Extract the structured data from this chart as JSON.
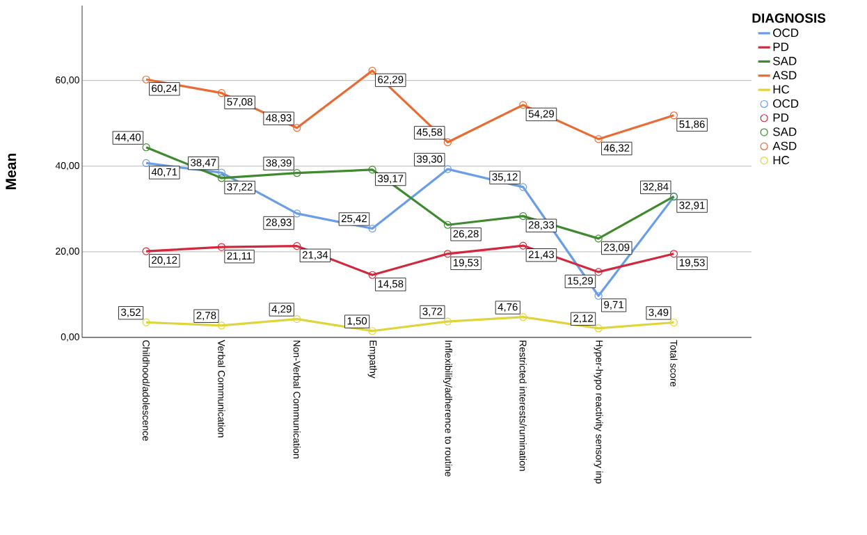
{
  "chart_data": {
    "type": "line",
    "ylabel": "Mean",
    "legend_title": "DIAGNOSIS",
    "categories": [
      "Childhood/adolescence",
      "Verbal Communication",
      "Non-Verbal Communication",
      "Empathy",
      "Inflexibility/adherence to routine",
      "Restricted interests/rumination",
      "Hyper-hypo reactivity sensory inp",
      "Total score"
    ],
    "series": [
      {
        "name": "OCD",
        "color": "#6a9de8",
        "values": [
          40.71,
          38.47,
          28.93,
          25.42,
          39.3,
          35.12,
          9.71,
          32.84
        ],
        "value_labels": [
          "40,71",
          "38,47",
          "28,93",
          "25,42",
          "39,30",
          "35,12",
          "9,71",
          "32,84"
        ]
      },
      {
        "name": "PD",
        "color": "#d0283c",
        "values": [
          20.12,
          21.11,
          21.34,
          14.58,
          19.53,
          21.43,
          15.29,
          19.53
        ],
        "value_labels": [
          "20,12",
          "21,11",
          "21,34",
          "14,58",
          "19,53",
          "21,43",
          "15,29",
          "19,53"
        ]
      },
      {
        "name": "SAD",
        "color": "#3f8a2e",
        "values": [
          44.4,
          37.22,
          38.39,
          39.17,
          26.28,
          28.33,
          23.09,
          32.91
        ],
        "value_labels": [
          "44,40",
          "37,22",
          "38,39",
          "39,17",
          "26,28",
          "28,33",
          "23,09",
          "32,91"
        ]
      },
      {
        "name": "ASD",
        "color": "#ea6a32",
        "values": [
          60.24,
          57.08,
          48.93,
          62.29,
          45.58,
          54.29,
          46.32,
          51.86
        ],
        "value_labels": [
          "60,24",
          "57,08",
          "48,93",
          "62,29",
          "45,58",
          "54,29",
          "46,32",
          "51,86"
        ]
      },
      {
        "name": "HC",
        "color": "#e0d43c",
        "values": [
          3.52,
          2.78,
          4.29,
          1.5,
          3.72,
          4.76,
          2.12,
          3.49
        ],
        "value_labels": [
          "3,52",
          "2,78",
          "4,29",
          "1,50",
          "3,72",
          "4,76",
          "2,12",
          "3,49"
        ]
      }
    ],
    "ylim": [
      0,
      77.5
    ],
    "yticks": [
      {
        "value": 0,
        "label": "0,00"
      },
      {
        "value": 20,
        "label": "20,00"
      },
      {
        "value": 40,
        "label": "40,00"
      },
      {
        "value": 60,
        "label": "60,00"
      }
    ],
    "grid": "y",
    "legend": "right",
    "marker": "circle",
    "line_style": "solid"
  }
}
